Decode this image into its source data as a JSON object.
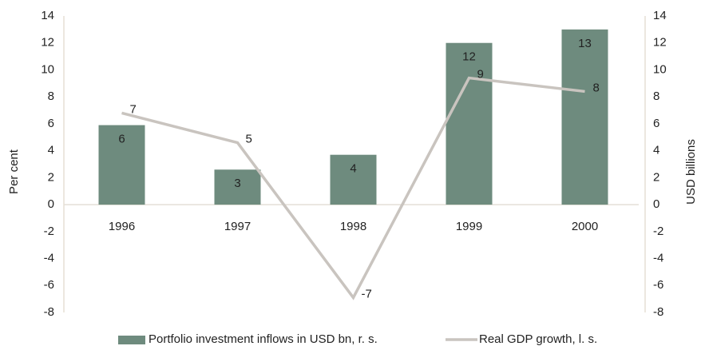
{
  "chart_data": {
    "type": "bar-line",
    "categories": [
      "1996",
      "1997",
      "1998",
      "1999",
      "2000"
    ],
    "series": [
      {
        "name": "Portfolio investment inflows in USD bn, r. s.",
        "type": "bar",
        "axis": "y2",
        "color": "#6e8b7e",
        "values": [
          5.9,
          2.6,
          3.7,
          12.0,
          13.0
        ],
        "value_labels": [
          "6",
          "3",
          "4",
          "12",
          "13"
        ]
      },
      {
        "name": "Real GDP growth, l. s.",
        "type": "line",
        "axis": "y",
        "color": "#c9c4bf",
        "values": [
          6.8,
          4.6,
          -6.9,
          9.4,
          8.4
        ],
        "value_labels": [
          "7",
          "5",
          "-7",
          "9",
          "8"
        ]
      }
    ],
    "y_label": "Per cent",
    "y2_label": "USD billions",
    "ylim": [
      -8,
      14
    ],
    "yticks": [
      -8,
      -6,
      -4,
      -2,
      0,
      2,
      4,
      6,
      8,
      10,
      12,
      14
    ],
    "y2lim": [
      -8,
      14
    ],
    "y2ticks": [
      -8,
      -6,
      -4,
      -2,
      0,
      2,
      4,
      6,
      8,
      10,
      12,
      14
    ]
  }
}
